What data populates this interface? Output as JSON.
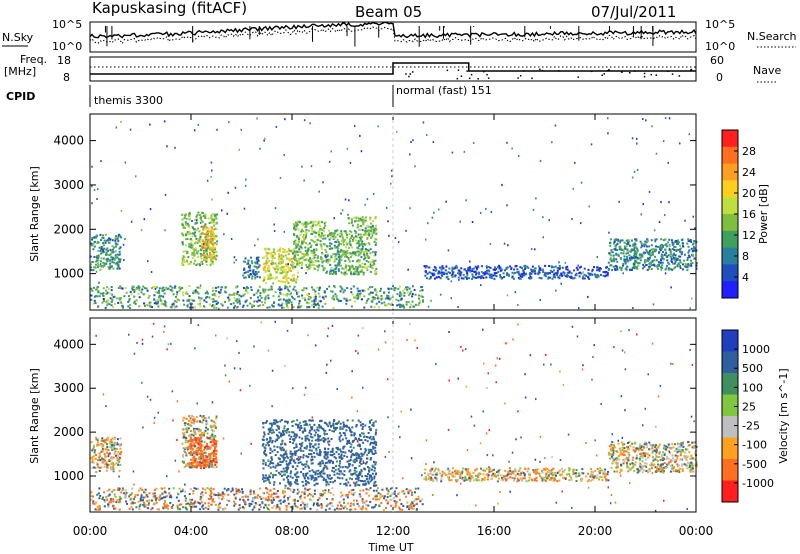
{
  "header": {
    "station": "Kapuskasing (fitACF)",
    "beam": "Beam 05",
    "date": "07/Jul/2011"
  },
  "top_panels": {
    "nsky_label": "N.Sky",
    "nsky_ticks": [
      "10^5",
      "10^0"
    ],
    "nsearch_label": "N.Search",
    "nsearch_ticks": [
      "10^5",
      "10^0"
    ],
    "freq_label_line1": "Freq.",
    "freq_label_line2": "[MHz]",
    "freq_ticks": [
      "18",
      "8"
    ],
    "nave_label": "Nave",
    "nave_ticks": [
      "60",
      "0"
    ],
    "cpid_label": "CPID",
    "cpid_segments": [
      {
        "name": "themis 3300",
        "start_hour": 0,
        "end_hour": 12
      },
      {
        "name": "normal (fast) 151",
        "start_hour": 12,
        "end_hour": 24
      }
    ]
  },
  "chart_data": [
    {
      "type": "heatmap",
      "name": "Power",
      "xlabel": "",
      "ylabel": "Slant Range [km]",
      "xlim": [
        0,
        24
      ],
      "ylim": [
        180,
        4600
      ],
      "yticks": [
        1000,
        2000,
        3000,
        4000
      ],
      "colorbar": {
        "label": "Power [dB]",
        "range": [
          0,
          32
        ],
        "ticks": [
          "4",
          "8",
          "12",
          "16",
          "20",
          "24",
          "28"
        ],
        "colors": [
          "#1f1fff",
          "#1f4fbf",
          "#2a7f9f",
          "#3f9f5f",
          "#7fbf3f",
          "#bfdf3f",
          "#ffcf1f",
          "#ff9f1f",
          "#ff6f1f",
          "#ff1f1f"
        ]
      },
      "echo_regions": [
        {
          "start_hour": 0.0,
          "end_hour": 1.2,
          "range_km": [
            1100,
            1900
          ],
          "level": 10
        },
        {
          "start_hour": 3.6,
          "end_hour": 5.0,
          "range_km": [
            1200,
            2400
          ],
          "level": 14
        },
        {
          "start_hour": 4.4,
          "end_hour": 4.9,
          "range_km": [
            1300,
            2100
          ],
          "level": 22
        },
        {
          "start_hour": 6.0,
          "end_hour": 6.7,
          "range_km": [
            900,
            1400
          ],
          "level": 8
        },
        {
          "start_hour": 6.8,
          "end_hour": 8.2,
          "range_km": [
            800,
            1600
          ],
          "level": 18
        },
        {
          "start_hour": 8.0,
          "end_hour": 9.3,
          "range_km": [
            1100,
            2200
          ],
          "level": 14
        },
        {
          "start_hour": 9.3,
          "end_hour": 10.2,
          "range_km": [
            1000,
            2000
          ],
          "level": 12
        },
        {
          "start_hour": 10.2,
          "end_hour": 11.3,
          "range_km": [
            1000,
            2300
          ],
          "level": 13
        },
        {
          "start_hour": 13.2,
          "end_hour": 20.5,
          "range_km": [
            900,
            1200
          ],
          "level": 5
        },
        {
          "start_hour": 20.5,
          "end_hour": 24.0,
          "range_km": [
            1100,
            1800
          ],
          "level": 9
        }
      ]
    },
    {
      "type": "heatmap",
      "name": "Velocity",
      "xlabel": "Time UT",
      "ylabel": "Slant Range [km]",
      "xlim": [
        0,
        24
      ],
      "ylim": [
        180,
        4600
      ],
      "xticks": [
        "00:00",
        "04:00",
        "08:00",
        "12:00",
        "16:00",
        "20:00",
        "00:00"
      ],
      "yticks": [
        1000,
        2000,
        3000,
        4000
      ],
      "colorbar": {
        "label": "Velocity [m s^-1]",
        "ticks": [
          "1000",
          "500",
          "100",
          "25",
          "-25",
          "-100",
          "-500",
          "-1000"
        ],
        "colors": [
          "#1f3fbf",
          "#2f5f9f",
          "#3f8f5f",
          "#7fc73f",
          "#bfbfbf",
          "#ffa01f",
          "#ff6f1f",
          "#ff1f1f"
        ]
      },
      "echo_regions": [
        {
          "start_hour": 0.0,
          "end_hour": 1.2,
          "range_km": [
            1100,
            1900
          ],
          "velocity": 0
        },
        {
          "start_hour": 3.6,
          "end_hour": 5.0,
          "range_km": [
            1200,
            2400
          ],
          "velocity": 0
        },
        {
          "start_hour": 3.9,
          "end_hour": 5.0,
          "range_km": [
            1200,
            1900
          ],
          "velocity": -400
        },
        {
          "start_hour": 6.8,
          "end_hour": 11.3,
          "range_km": [
            800,
            2300
          ],
          "velocity": 200
        },
        {
          "start_hour": 13.2,
          "end_hour": 20.5,
          "range_km": [
            900,
            1200
          ],
          "velocity": -10
        },
        {
          "start_hour": 20.5,
          "end_hour": 24.0,
          "range_km": [
            1100,
            1800
          ],
          "velocity": 0
        }
      ]
    }
  ]
}
